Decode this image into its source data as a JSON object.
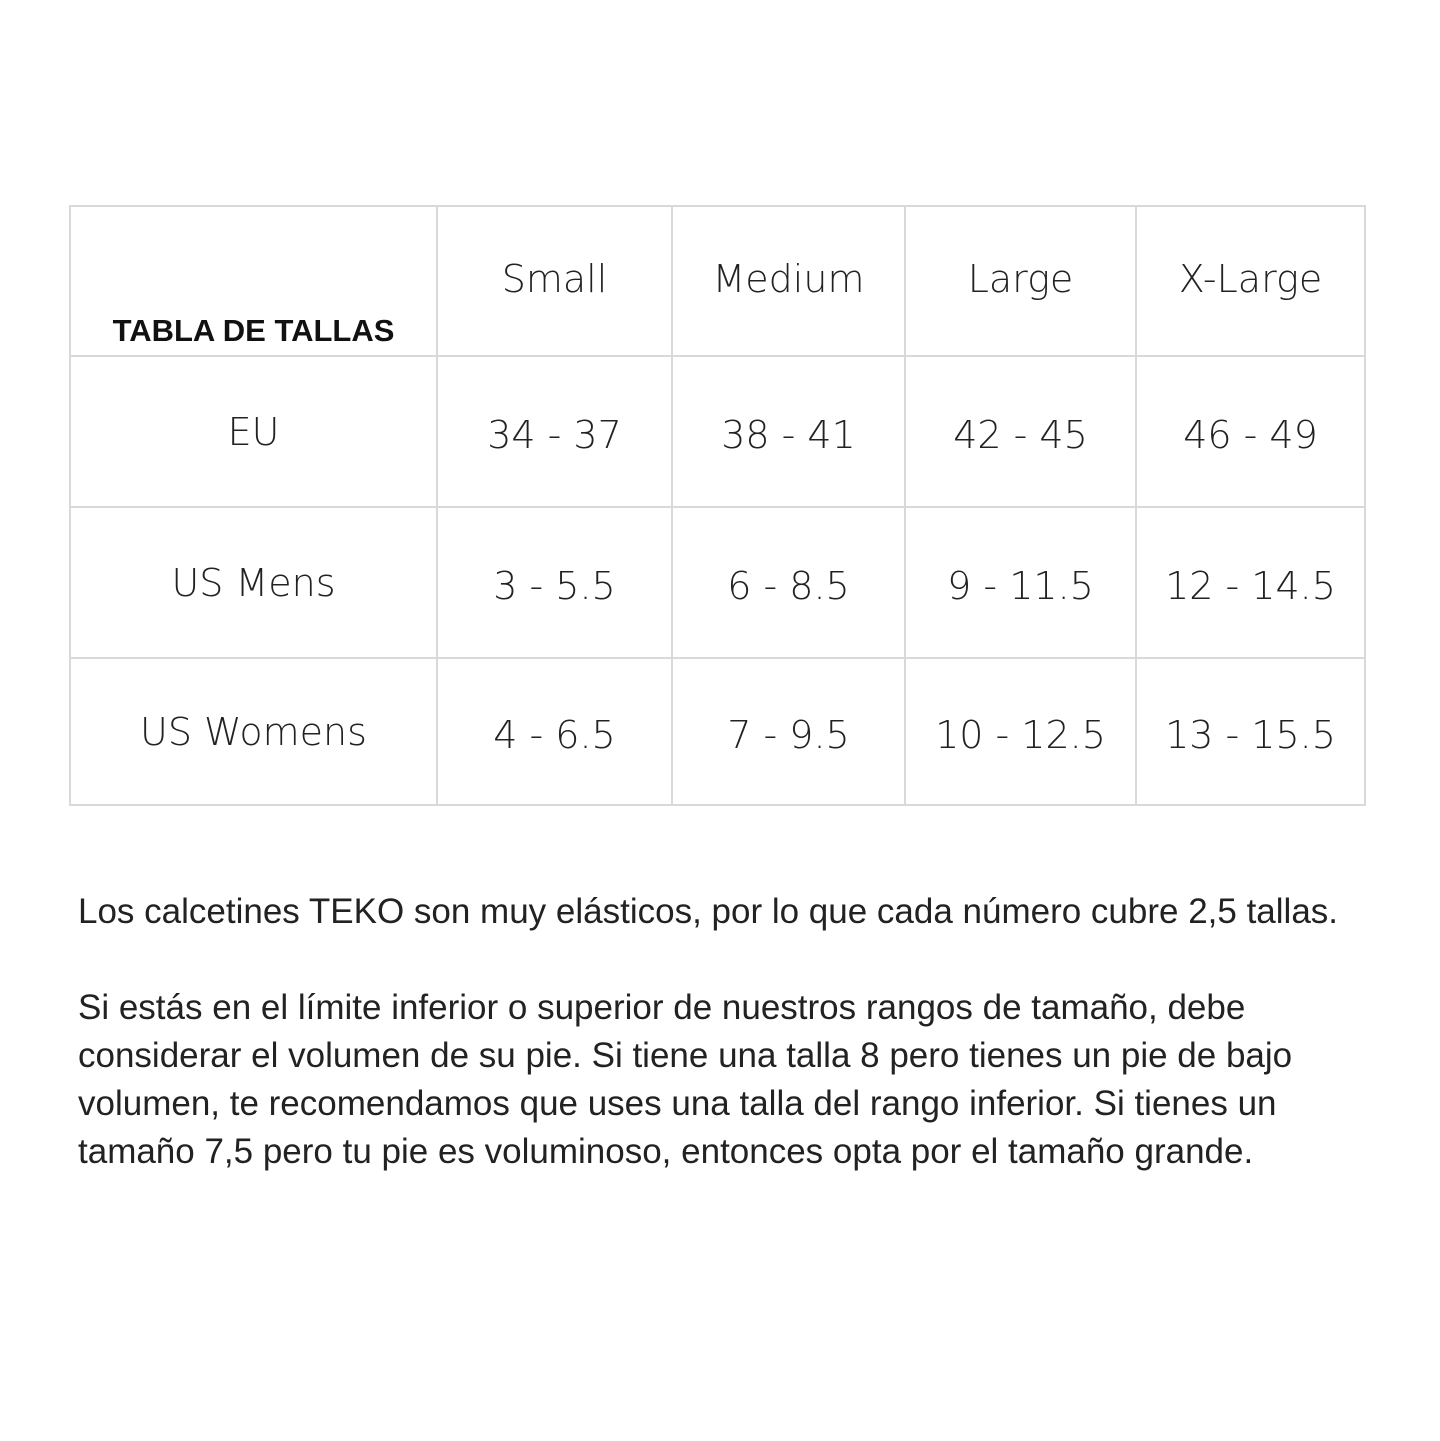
{
  "table": {
    "corner_label": "TABLA DE TALLAS",
    "columns": [
      "Small",
      "Medium",
      "Large",
      "X-Large"
    ],
    "rows": [
      {
        "label": "EU",
        "values": [
          "34 - 37",
          "38 - 41",
          "42 - 45",
          "46 - 49"
        ]
      },
      {
        "label": "US Mens",
        "values": [
          "3 - 5.5",
          "6 - 8.5",
          "9 - 11.5",
          "12 - 14.5"
        ]
      },
      {
        "label": "US Womens",
        "values": [
          "4 - 6.5",
          "7 - 9.5",
          "10 - 12.5",
          "13 - 15.5"
        ]
      }
    ]
  },
  "paragraphs": [
    "Los calcetines TEKO son muy elásticos, por lo que cada número cubre 2,5 tallas.",
    "Si estás en el límite inferior o superior de nuestros rangos de tamaño, debe considerar el volumen de su pie. Si tiene una talla 8 pero tienes un pie de bajo volumen, te recomendamos que uses una talla del rango inferior. Si tienes un tamaño 7,5 pero tu pie es voluminoso, entonces opta por el tamaño grande."
  ]
}
